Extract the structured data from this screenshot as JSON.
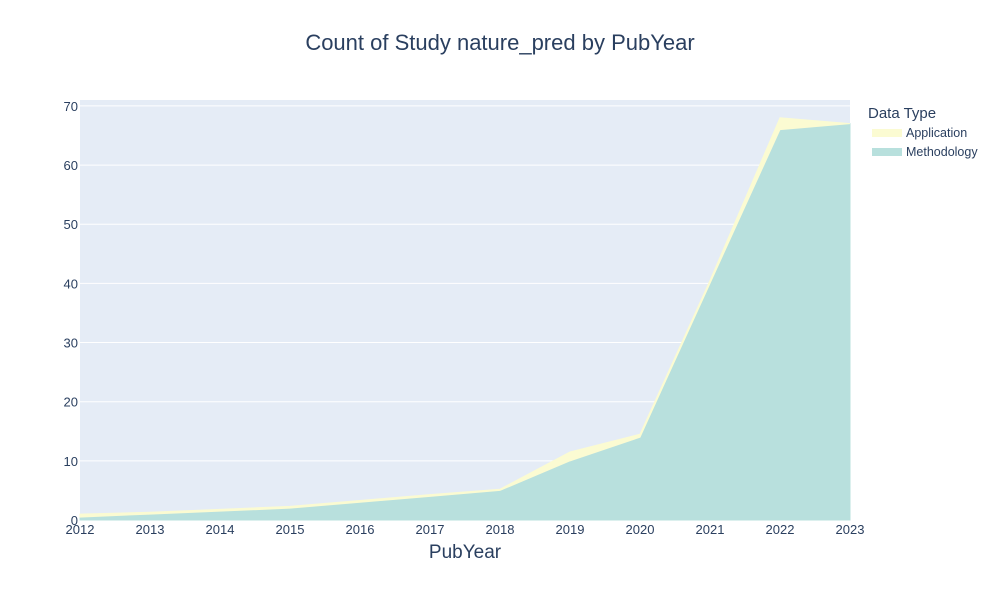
{
  "chart_data": {
    "type": "area",
    "title": "Count of Study nature_pred by PubYear",
    "xlabel": "PubYear",
    "ylabel": "",
    "x": [
      2012,
      2013,
      2014,
      2015,
      2016,
      2017,
      2018,
      2019,
      2020,
      2021,
      2022,
      2023
    ],
    "xlim": [
      2012,
      2023
    ],
    "ylim": [
      0,
      71
    ],
    "yticks": [
      0,
      10,
      20,
      30,
      40,
      50,
      60,
      70
    ],
    "stacked": true,
    "grid": true,
    "legend_title": "Data Type",
    "legend_position": "right",
    "series": [
      {
        "name": "Methodology",
        "values": [
          0.5,
          1,
          1.5,
          2,
          3,
          4,
          5,
          10,
          14,
          40,
          66,
          67
        ],
        "color": "#b8e0dd"
      },
      {
        "name": "Application",
        "values": [
          0.5,
          0.3,
          0.3,
          0.3,
          0.3,
          0.3,
          0.2,
          1.5,
          0.5,
          0.5,
          2,
          0
        ],
        "color": "#fbfbd2"
      }
    ],
    "colors": {
      "plot_background": "#e5ecf6",
      "grid": "#ffffff",
      "text": "#2a3f5f"
    }
  }
}
